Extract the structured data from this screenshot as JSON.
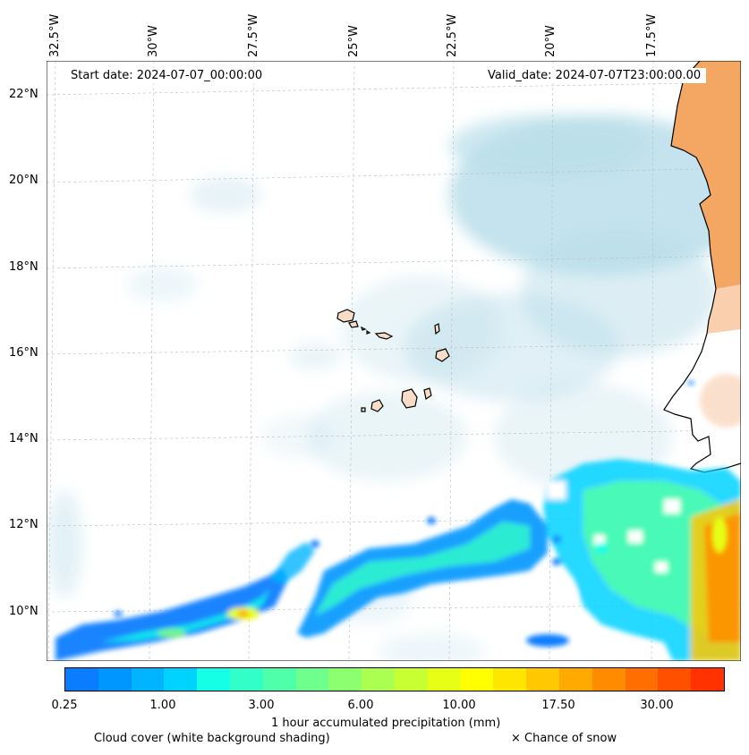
{
  "map": {
    "lon_labels": [
      "32.5°W",
      "30°W",
      "27.5°W",
      "25°W",
      "22.5°W",
      "20°W",
      "17.5°W"
    ],
    "lat_labels": [
      "22°N",
      "20°N",
      "18°N",
      "16°N",
      "14°N",
      "12°N",
      "10°N"
    ],
    "start_date": "Start date: 2024-07-07_00:00:00",
    "valid_date": "Valid_date: 2024-07-07T23:00:00.00",
    "colors": {
      "land": "#f4a663",
      "cloud": "#add8e6",
      "coastline": "#000000",
      "grid": "#bbbbbb"
    }
  },
  "colorbar": {
    "label": "1 hour accumulated precipitation (mm)",
    "tick_labels": [
      "0.25",
      "1.00",
      "3.00",
      "6.00",
      "10.00",
      "17.50",
      "30.00"
    ],
    "colors": [
      "#0a7dff",
      "#0096ff",
      "#00b4ff",
      "#00d2ff",
      "#14ffe6",
      "#32ffc8",
      "#50ffaa",
      "#6eff8c",
      "#8cff6e",
      "#aaff50",
      "#c8ff32",
      "#e6ff14",
      "#ffff00",
      "#ffe600",
      "#ffc800",
      "#ffaa00",
      "#ff8c00",
      "#ff6e00",
      "#ff5000",
      "#ff3200"
    ]
  },
  "footer": {
    "cloud_note": "Cloud cover (white background shading)",
    "snow_note": "× Chance of snow"
  }
}
